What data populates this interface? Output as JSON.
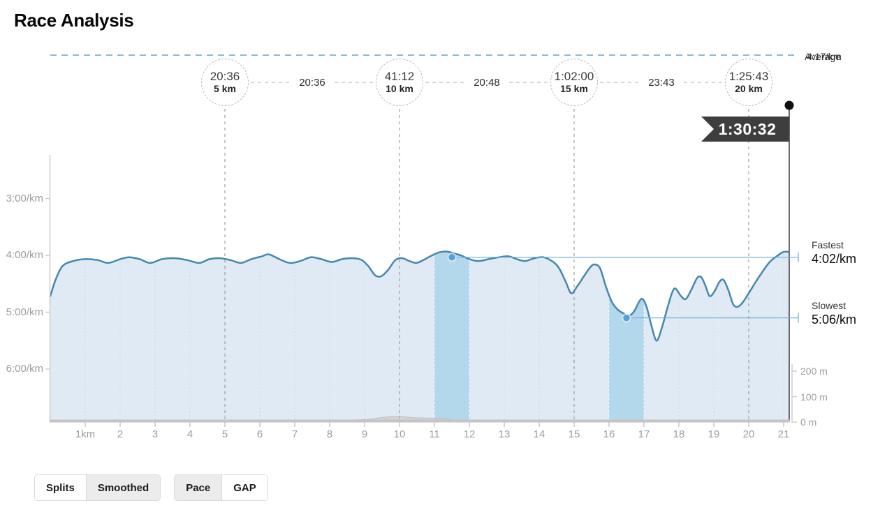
{
  "title": "Race Analysis",
  "colors": {
    "pace_line": "#4587b0",
    "pace_fill": "#dfeaf4",
    "highlight_band": "#8ec9e6",
    "marker_dot": "#54a0d6",
    "extreme_line": "#79b1d6",
    "average_line": "#88bbd9",
    "flag_bg": "#3e3e3e",
    "elevation_fill": "#cfcfcf",
    "axis_gray": "#c4c4c4",
    "label_gray": "#9d9d9d"
  },
  "chart_data": {
    "type": "area",
    "title": "Race Analysis",
    "x_axis": {
      "unit": "km",
      "tick_labels": [
        "1km",
        "2",
        "3",
        "4",
        "5",
        "6",
        "7",
        "8",
        "9",
        "10",
        "11",
        "12",
        "13",
        "14",
        "15",
        "16",
        "17",
        "18",
        "19",
        "20",
        "21"
      ],
      "range_km": [
        0,
        21.16
      ],
      "grid": "dotted-per-km"
    },
    "pace_axis": {
      "tick_labels": [
        "3:00/km",
        "4:00/km",
        "5:00/km",
        "6:00/km"
      ],
      "tick_values_s": [
        180,
        240,
        300,
        360
      ],
      "inverted": true,
      "side": "left"
    },
    "elevation_axis": {
      "tick_labels": [
        "200 m",
        "100 m",
        "0 m"
      ],
      "tick_values_m": [
        200,
        100,
        0
      ],
      "side": "right"
    },
    "average": {
      "label": "Average",
      "pace_label": "4:17/km"
    },
    "splits": [
      {
        "time": "20:36",
        "distance": "5 km",
        "km": 5
      },
      {
        "time": "41:12",
        "distance": "10 km",
        "km": 10
      },
      {
        "time": "1:02:00",
        "distance": "15 km",
        "km": 15
      },
      {
        "time": "1:25:43",
        "distance": "20 km",
        "km": 20
      }
    ],
    "interval_labels": [
      {
        "time": "20:36",
        "mid_km": 7.5
      },
      {
        "time": "20:48",
        "mid_km": 12.5
      },
      {
        "time": "23:43",
        "mid_km": 17.5
      }
    ],
    "finish": {
      "time": "1:30:32",
      "km": 21.16
    },
    "fastest": {
      "label": "Fastest",
      "value": "4:02/km",
      "km": 11.5,
      "pace_s": 242
    },
    "slowest": {
      "label": "Slowest",
      "value": "5:06/km",
      "km": 16.5,
      "pace_s": 306
    },
    "highlight_bands_km": [
      [
        11,
        12
      ],
      [
        16,
        17
      ]
    ],
    "series": [
      {
        "name": "Pace",
        "unit": "seconds_per_km",
        "points": [
          [
            0,
            283
          ],
          [
            0.16,
            265
          ],
          [
            0.36,
            251
          ],
          [
            0.66,
            246
          ],
          [
            1,
            244
          ],
          [
            1.36,
            245
          ],
          [
            1.66,
            248
          ],
          [
            2,
            244
          ],
          [
            2.26,
            242
          ],
          [
            2.56,
            244
          ],
          [
            2.86,
            248
          ],
          [
            3.2,
            244
          ],
          [
            3.56,
            243
          ],
          [
            3.92,
            245
          ],
          [
            4.26,
            248
          ],
          [
            4.56,
            244
          ],
          [
            4.86,
            243
          ],
          [
            5.16,
            245
          ],
          [
            5.46,
            248
          ],
          [
            5.76,
            244
          ],
          [
            6.06,
            241
          ],
          [
            6.26,
            239
          ],
          [
            6.56,
            244
          ],
          [
            6.86,
            248
          ],
          [
            7.16,
            246
          ],
          [
            7.46,
            242
          ],
          [
            7.76,
            244
          ],
          [
            8.06,
            247
          ],
          [
            8.36,
            244
          ],
          [
            8.66,
            243
          ],
          [
            8.92,
            245
          ],
          [
            9.12,
            252
          ],
          [
            9.3,
            261
          ],
          [
            9.48,
            262
          ],
          [
            9.68,
            255
          ],
          [
            9.88,
            245
          ],
          [
            10.08,
            243
          ],
          [
            10.28,
            246
          ],
          [
            10.48,
            248
          ],
          [
            10.68,
            245
          ],
          [
            10.88,
            241
          ],
          [
            11.12,
            237
          ],
          [
            11.36,
            236
          ],
          [
            11.56,
            238
          ],
          [
            11.76,
            240
          ],
          [
            12,
            244
          ],
          [
            12.26,
            246
          ],
          [
            12.56,
            244
          ],
          [
            12.86,
            242
          ],
          [
            13.12,
            241
          ],
          [
            13.36,
            244
          ],
          [
            13.6,
            246
          ],
          [
            13.86,
            243
          ],
          [
            14.12,
            242
          ],
          [
            14.36,
            246
          ],
          [
            14.56,
            253
          ],
          [
            14.76,
            268
          ],
          [
            14.92,
            280
          ],
          [
            15.1,
            272
          ],
          [
            15.3,
            261
          ],
          [
            15.5,
            251
          ],
          [
            15.64,
            250
          ],
          [
            15.76,
            255
          ],
          [
            15.92,
            274
          ],
          [
            16.08,
            289
          ],
          [
            16.24,
            297
          ],
          [
            16.4,
            301
          ],
          [
            16.56,
            304
          ],
          [
            16.72,
            299
          ],
          [
            16.86,
            289
          ],
          [
            16.96,
            286
          ],
          [
            17.08,
            295
          ],
          [
            17.22,
            315
          ],
          [
            17.36,
            330
          ],
          [
            17.5,
            318
          ],
          [
            17.66,
            297
          ],
          [
            17.8,
            280
          ],
          [
            17.9,
            275
          ],
          [
            18.06,
            283
          ],
          [
            18.2,
            286
          ],
          [
            18.36,
            276
          ],
          [
            18.52,
            264
          ],
          [
            18.64,
            263
          ],
          [
            18.76,
            272
          ],
          [
            18.88,
            283
          ],
          [
            19.02,
            278
          ],
          [
            19.16,
            268
          ],
          [
            19.28,
            266
          ],
          [
            19.42,
            277
          ],
          [
            19.56,
            292
          ],
          [
            19.7,
            294
          ],
          [
            19.84,
            289
          ],
          [
            20,
            280
          ],
          [
            20.2,
            268
          ],
          [
            20.4,
            257
          ],
          [
            20.6,
            247
          ],
          [
            20.8,
            241
          ],
          [
            20.96,
            237
          ],
          [
            21.08,
            236
          ],
          [
            21.16,
            237
          ]
        ]
      },
      {
        "name": "Elevation",
        "unit": "m",
        "points": [
          [
            0,
            2
          ],
          [
            1,
            2
          ],
          [
            2,
            3
          ],
          [
            3,
            2
          ],
          [
            4,
            3
          ],
          [
            5,
            3
          ],
          [
            6,
            4
          ],
          [
            7,
            4
          ],
          [
            7.6,
            5
          ],
          [
            8,
            6
          ],
          [
            8.6,
            8
          ],
          [
            9,
            10
          ],
          [
            9.2,
            12
          ],
          [
            9.5,
            18
          ],
          [
            9.8,
            22
          ],
          [
            10.1,
            21
          ],
          [
            10.4,
            17
          ],
          [
            10.7,
            16
          ],
          [
            11,
            15
          ],
          [
            11.3,
            13
          ],
          [
            11.5,
            8
          ],
          [
            11.7,
            4
          ],
          [
            12,
            3
          ],
          [
            13,
            2
          ],
          [
            14,
            2
          ],
          [
            15,
            2
          ],
          [
            16,
            3
          ],
          [
            17,
            4
          ],
          [
            18,
            5
          ],
          [
            19,
            4
          ],
          [
            20,
            5
          ],
          [
            21,
            4
          ],
          [
            21.16,
            4
          ]
        ]
      }
    ]
  },
  "controls": {
    "view_toggle": {
      "options": [
        {
          "label": "Splits",
          "active": false
        },
        {
          "label": "Smoothed",
          "active": true
        }
      ]
    },
    "metric_toggle": {
      "options": [
        {
          "label": "Pace",
          "active": true
        },
        {
          "label": "GAP",
          "active": false
        }
      ]
    }
  }
}
